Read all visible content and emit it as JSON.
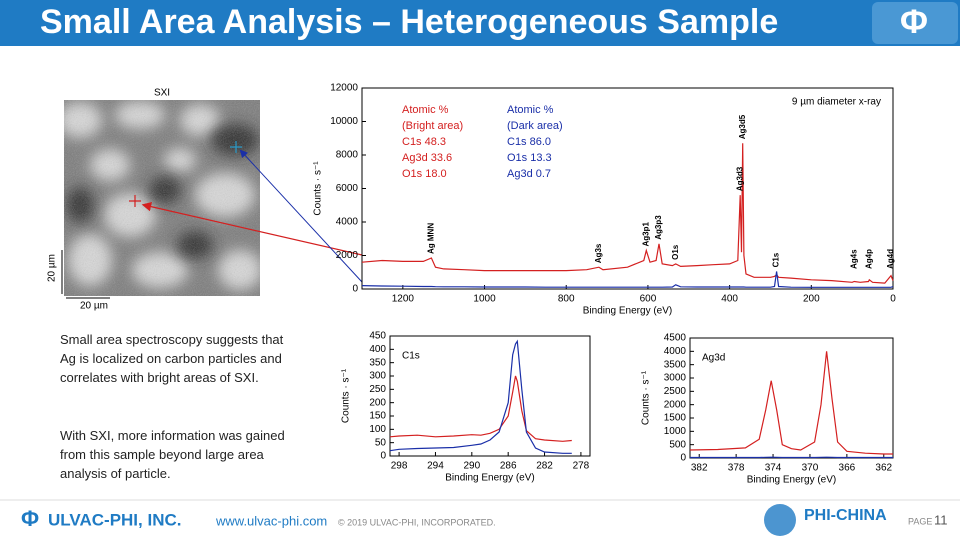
{
  "header": {
    "title": "Small Area Analysis – Heterogeneous Sample",
    "logo": "Φ"
  },
  "sxi": {
    "title": "SXI",
    "scale_y": "20 µm",
    "scale_x": "20 µm"
  },
  "text": [
    "Small area spectroscopy suggests that Ag is localized on carbon particles and correlates with bright areas of SXI.",
    "With SXI, more information was gained from this sample beyond large area analysis of particle."
  ],
  "footer": {
    "logo": "Φ",
    "company": "ULVAC-PHI, INC.",
    "url": "www.ulvac-phi.com",
    "copyright": "© 2019 ULVAC-PHI, INCORPORATED.",
    "brand": "PHI-CHINA",
    "page_label": "PAGE",
    "page": 11
  },
  "chart_data": [
    {
      "type": "line",
      "x_label": "Binding Energy (eV)",
      "y_label": "Counts · s⁻¹",
      "note": "9 µm diameter x-ray",
      "xlim": [
        1300,
        0
      ],
      "xticks": [
        1200,
        1000,
        800,
        600,
        400,
        200,
        0
      ],
      "ylim": [
        0,
        12000
      ],
      "yticks": [
        0,
        2000,
        4000,
        6000,
        8000,
        10000,
        12000
      ],
      "x": [
        1300,
        1250,
        1200,
        1150,
        1130,
        1120,
        1100,
        1050,
        1000,
        950,
        900,
        850,
        800,
        750,
        720,
        710,
        650,
        610,
        604,
        595,
        580,
        573,
        565,
        540,
        532,
        520,
        480,
        440,
        400,
        380,
        374,
        371,
        368,
        365,
        360,
        340,
        300,
        290,
        285,
        280,
        250,
        200,
        150,
        100,
        95,
        80,
        60,
        58,
        50,
        20,
        5,
        0
      ],
      "series": [
        {
          "color": "#d42020",
          "values": [
            1600,
            1700,
            1650,
            1650,
            1850,
            1300,
            1200,
            1150,
            1100,
            1100,
            1100,
            1100,
            1100,
            1150,
            1300,
            1150,
            1300,
            1700,
            2300,
            1600,
            1700,
            2700,
            1500,
            1400,
            1500,
            1350,
            1400,
            1450,
            1500,
            1700,
            5600,
            2200,
            8700,
            2000,
            900,
            700,
            700,
            750,
            850,
            700,
            650,
            550,
            500,
            400,
            450,
            400,
            450,
            550,
            400,
            350,
            800,
            500
          ]
        },
        {
          "color": "#1a2fa8",
          "values": [
            200,
            180,
            170,
            150,
            150,
            140,
            130,
            130,
            120,
            120,
            120,
            110,
            110,
            110,
            110,
            110,
            110,
            110,
            110,
            110,
            110,
            110,
            110,
            120,
            250,
            130,
            120,
            120,
            120,
            120,
            120,
            120,
            120,
            120,
            110,
            110,
            110,
            150,
            1050,
            150,
            110,
            100,
            100,
            100,
            100,
            100,
            100,
            100,
            100,
            100,
            100,
            150
          ]
        }
      ],
      "peak_labels": [
        {
          "text": "Ag MNN",
          "x": 1130
        },
        {
          "text": "Ag3s",
          "x": 720
        },
        {
          "text": "Ag3p1",
          "x": 604
        },
        {
          "text": "Ag3p3",
          "x": 573
        },
        {
          "text": "O1s",
          "x": 532
        },
        {
          "text": "Ag3d3",
          "x": 374
        },
        {
          "text": "Ag3d5",
          "x": 368
        },
        {
          "text": "C1s",
          "x": 285
        },
        {
          "text": "Ag4s",
          "x": 95
        },
        {
          "text": "Ag4p",
          "x": 58
        },
        {
          "text": "Ag4d",
          "x": 5
        }
      ],
      "composition": [
        {
          "color": "#d42020",
          "lines": [
            "Atomic %",
            "(Bright area)",
            "C1s  48.3",
            "Ag3d  33.6",
            "O1s  18.0"
          ]
        },
        {
          "color": "#1a2fa8",
          "lines": [
            "Atomic %",
            "(Dark area)",
            "C1s  86.0",
            "O1s  13.3",
            "Ag3d   0.7"
          ]
        }
      ]
    },
    {
      "type": "line",
      "label": "C1s",
      "x_label": "Binding Energy (eV)",
      "y_label": "Counts · s⁻¹",
      "xlim": [
        299,
        277
      ],
      "xticks": [
        298,
        294,
        290,
        286,
        282,
        278
      ],
      "ylim": [
        0,
        450
      ],
      "yticks": [
        0,
        50,
        100,
        150,
        200,
        250,
        300,
        350,
        400,
        450
      ],
      "x": [
        299,
        298,
        296,
        294,
        292,
        290,
        289,
        288,
        287,
        286,
        285.5,
        285.2,
        285,
        284.5,
        284,
        283,
        282,
        280,
        279
      ],
      "series": [
        {
          "color": "#d42020",
          "values": [
            72,
            75,
            78,
            72,
            75,
            80,
            78,
            85,
            100,
            150,
            240,
            300,
            280,
            170,
            95,
            65,
            60,
            55,
            58
          ]
        },
        {
          "color": "#1a2fa8",
          "values": [
            20,
            25,
            28,
            30,
            32,
            40,
            45,
            60,
            90,
            200,
            380,
            420,
            430,
            250,
            90,
            30,
            15,
            10,
            10
          ]
        }
      ]
    },
    {
      "type": "line",
      "label": "Ag3d",
      "x_label": "Binding Energy (eV)",
      "y_label": "Counts · s⁻¹",
      "xlim": [
        383,
        361
      ],
      "xticks": [
        382,
        378,
        374,
        370,
        366,
        362
      ],
      "ylim": [
        0,
        4500
      ],
      "yticks": [
        0,
        500,
        1000,
        1500,
        2000,
        2500,
        3000,
        3500,
        4000,
        4500
      ],
      "x": [
        383,
        380,
        377,
        375.5,
        374.8,
        374.2,
        373.6,
        373,
        372,
        371,
        369.5,
        368.8,
        368.2,
        367.6,
        367,
        366,
        364,
        362,
        361
      ],
      "series": [
        {
          "color": "#d42020",
          "values": [
            300,
            320,
            380,
            700,
            1800,
            2900,
            1800,
            500,
            350,
            300,
            600,
            2000,
            4000,
            2200,
            600,
            250,
            180,
            150,
            150
          ]
        },
        {
          "color": "#1a2fa8",
          "values": [
            20,
            20,
            20,
            20,
            25,
            30,
            25,
            20,
            20,
            20,
            20,
            25,
            30,
            25,
            20,
            20,
            20,
            20,
            20
          ]
        }
      ]
    }
  ]
}
